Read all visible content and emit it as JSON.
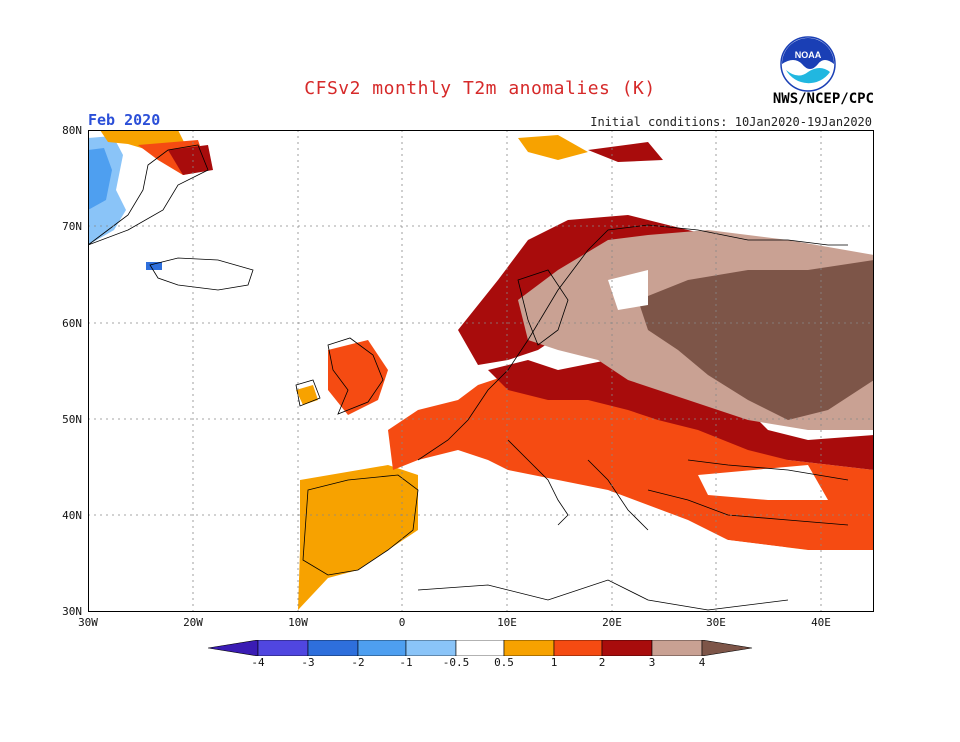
{
  "header": {
    "title": "CFSv2 monthly T2m anomalies (K)",
    "month": "Feb 2020",
    "init": "Initial conditions: 10Jan2020-19Jan2020",
    "org": "NWS/NCEP/CPC",
    "logo_text": "NOAA"
  },
  "map": {
    "region": "Europe",
    "lon_range": [
      -30,
      45
    ],
    "lat_range": [
      30,
      80
    ],
    "lat_labels": [
      "80N",
      "70N",
      "60N",
      "50N",
      "40N",
      "30N"
    ],
    "lon_labels": [
      "30W",
      "20W",
      "10W",
      "0",
      "10E",
      "20E",
      "30E",
      "40E"
    ],
    "grid": "dotted"
  },
  "colorbar": {
    "tick_labels": [
      "-4",
      "-3",
      "-2",
      "-1",
      "-0.5",
      "0.5",
      "1",
      "2",
      "3",
      "4"
    ],
    "colors": [
      "#3a1cb4",
      "#5046e0",
      "#2e6fdc",
      "#4e9ff0",
      "#8ac4f8",
      "#ffffff",
      "#f7a200",
      "#f54b12",
      "#a80c0c",
      "#c9a193",
      "#7d5548"
    ]
  }
}
